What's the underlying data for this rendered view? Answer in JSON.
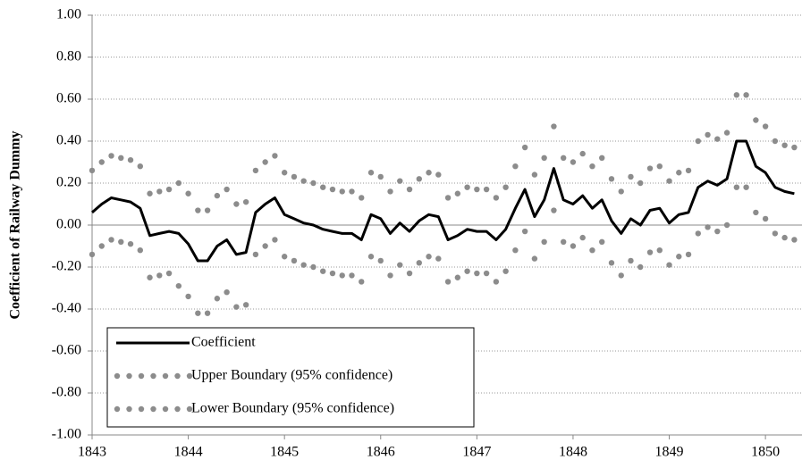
{
  "chart_data": {
    "type": "line",
    "y_label": "Coefficient of Railway Dummy",
    "x": [
      1843.0,
      1843.1,
      1843.2,
      1843.3,
      1843.4,
      1843.5,
      1843.6,
      1843.7,
      1843.8,
      1843.9,
      1844.0,
      1844.1,
      1844.2,
      1844.3,
      1844.4,
      1844.5,
      1844.6,
      1844.7,
      1844.8,
      1844.9,
      1845.0,
      1845.1,
      1845.2,
      1845.3,
      1845.4,
      1845.5,
      1845.6,
      1845.7,
      1845.8,
      1845.9,
      1846.0,
      1846.1,
      1846.2,
      1846.3,
      1846.4,
      1846.5,
      1846.6,
      1846.7,
      1846.8,
      1846.9,
      1847.0,
      1847.1,
      1847.2,
      1847.3,
      1847.4,
      1847.5,
      1847.6,
      1847.7,
      1847.8,
      1847.9,
      1848.0,
      1848.1,
      1848.2,
      1848.3,
      1848.4,
      1848.5,
      1848.6,
      1848.7,
      1848.8,
      1848.9,
      1849.0,
      1849.1,
      1849.2,
      1849.3,
      1849.4,
      1849.5,
      1849.6,
      1849.7,
      1849.8,
      1849.9,
      1850.0,
      1850.1,
      1850.2,
      1850.3
    ],
    "series": [
      {
        "name": "Coefficient",
        "color": "#000000",
        "style": "solid",
        "values": [
          0.06,
          0.1,
          0.13,
          0.12,
          0.11,
          0.08,
          -0.05,
          -0.04,
          -0.03,
          -0.04,
          -0.09,
          -0.17,
          -0.17,
          -0.1,
          -0.07,
          -0.14,
          -0.13,
          0.06,
          0.1,
          0.13,
          0.05,
          0.03,
          0.01,
          0.0,
          -0.02,
          -0.03,
          -0.04,
          -0.04,
          -0.07,
          0.05,
          0.03,
          -0.04,
          0.01,
          -0.03,
          0.02,
          0.05,
          0.04,
          -0.07,
          -0.05,
          -0.02,
          -0.03,
          -0.03,
          -0.07,
          -0.02,
          0.08,
          0.17,
          0.04,
          0.12,
          0.27,
          0.12,
          0.1,
          0.14,
          0.08,
          0.12,
          0.02,
          -0.04,
          0.03,
          0.0,
          0.07,
          0.08,
          0.01,
          0.05,
          0.06,
          0.18,
          0.21,
          0.19,
          0.22,
          0.4,
          0.4,
          0.28,
          0.25,
          0.18,
          0.16,
          0.15
        ]
      },
      {
        "name": "Upper Boundary (95% confidence)",
        "color": "#8c8c8c",
        "style": "dotted",
        "values": [
          0.26,
          0.3,
          0.33,
          0.32,
          0.31,
          0.28,
          0.15,
          0.16,
          0.17,
          0.2,
          0.15,
          0.07,
          0.07,
          0.14,
          0.17,
          0.1,
          0.11,
          0.26,
          0.3,
          0.33,
          0.25,
          0.23,
          0.21,
          0.2,
          0.18,
          0.17,
          0.16,
          0.16,
          0.13,
          0.25,
          0.23,
          0.16,
          0.21,
          0.17,
          0.22,
          0.25,
          0.24,
          0.13,
          0.15,
          0.18,
          0.17,
          0.17,
          0.13,
          0.18,
          0.28,
          0.37,
          0.24,
          0.32,
          0.47,
          0.32,
          0.3,
          0.34,
          0.28,
          0.32,
          0.22,
          0.16,
          0.23,
          0.2,
          0.27,
          0.28,
          0.21,
          0.25,
          0.26,
          0.4,
          0.43,
          0.41,
          0.44,
          0.62,
          0.62,
          0.5,
          0.47,
          0.4,
          0.38,
          0.37
        ]
      },
      {
        "name": "Lower Boundary (95% confidence)",
        "color": "#8c8c8c",
        "style": "dotted",
        "values": [
          -0.14,
          -0.1,
          -0.07,
          -0.08,
          -0.09,
          -0.12,
          -0.25,
          -0.24,
          -0.23,
          -0.29,
          -0.34,
          -0.42,
          -0.42,
          -0.35,
          -0.32,
          -0.39,
          -0.38,
          -0.14,
          -0.1,
          -0.07,
          -0.15,
          -0.17,
          -0.19,
          -0.2,
          -0.22,
          -0.23,
          -0.24,
          -0.24,
          -0.27,
          -0.15,
          -0.17,
          -0.24,
          -0.19,
          -0.23,
          -0.18,
          -0.15,
          -0.16,
          -0.27,
          -0.25,
          -0.22,
          -0.23,
          -0.23,
          -0.27,
          -0.22,
          -0.12,
          -0.03,
          -0.16,
          -0.08,
          0.07,
          -0.08,
          -0.1,
          -0.06,
          -0.12,
          -0.08,
          -0.18,
          -0.24,
          -0.17,
          -0.2,
          -0.13,
          -0.12,
          -0.19,
          -0.15,
          -0.14,
          -0.04,
          -0.01,
          -0.03,
          0.0,
          0.18,
          0.18,
          0.06,
          0.03,
          -0.04,
          -0.06,
          -0.07
        ]
      }
    ],
    "xlim": [
      1843,
      1850.38
    ],
    "xticks": [
      1843,
      1844,
      1845,
      1846,
      1847,
      1848,
      1849,
      1850
    ],
    "ylim": [
      -1,
      1
    ],
    "yticks": [
      {
        "value": 1,
        "label": "1.00"
      },
      {
        "value": 0.8,
        "label": "0.80"
      },
      {
        "value": 0.6,
        "label": "0.60"
      },
      {
        "value": 0.4,
        "label": "0.40"
      },
      {
        "value": 0.2,
        "label": "0.20"
      },
      {
        "value": 0,
        "label": "0.00"
      },
      {
        "value": -0.2,
        "label": "-0.20"
      },
      {
        "value": -0.4,
        "label": "-0.40"
      },
      {
        "value": -0.6,
        "label": "-0.60"
      },
      {
        "value": -0.8,
        "label": "-0.80"
      },
      {
        "value": -1,
        "label": "-1.00"
      }
    ],
    "grid": true,
    "legend": "lower left"
  }
}
